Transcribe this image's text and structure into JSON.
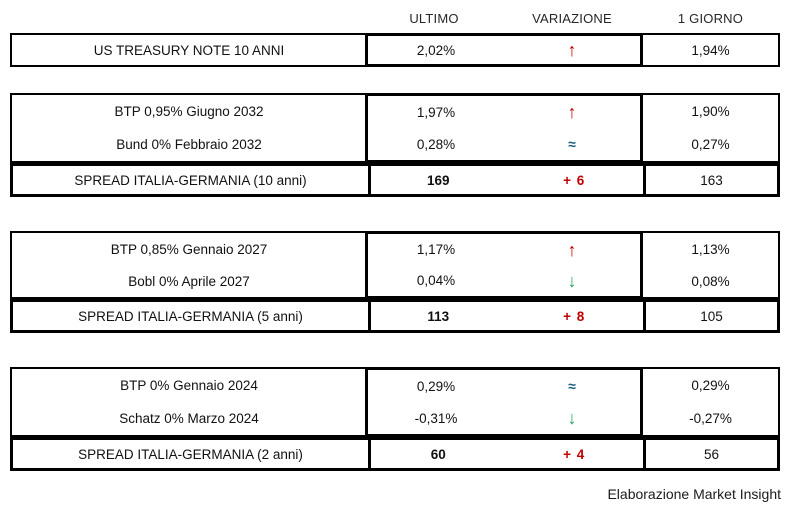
{
  "header": {
    "ultimo": "ULTIMO",
    "variazione": "VARIAZIONE",
    "giorno": "1 GIORNO"
  },
  "colors": {
    "up_red": "#c00000",
    "down_green": "#27a35f",
    "approx_blue": "#1b5e7d",
    "border_black": "#000000",
    "text": "#111111"
  },
  "sections": [
    {
      "rows": [
        {
          "label": "US TREASURY NOTE 10 ANNI",
          "ultimo": "2,02%",
          "var": {
            "glyph": "↑",
            "icon": "trend-up-icon"
          },
          "giorno": "1,94%"
        }
      ]
    },
    {
      "rows": [
        {
          "label": "BTP 0,95% Giugno 2032",
          "ultimo": "1,97%",
          "var": {
            "glyph": "↑",
            "icon": "trend-up-icon"
          },
          "giorno": "1,90%"
        },
        {
          "label": "Bund 0% Febbraio 2032",
          "ultimo": "0,28%",
          "var": {
            "glyph": "≈",
            "icon": "approx-icon"
          },
          "giorno": "0,27%"
        }
      ],
      "spread": {
        "label": "SPREAD ITALIA-GERMANIA (10 anni)",
        "ultimo": "169",
        "variazione": "+ 6",
        "giorno": "163"
      }
    },
    {
      "rows": [
        {
          "label": "BTP 0,85% Gennaio 2027",
          "ultimo": "1,17%",
          "var": {
            "glyph": "↑",
            "icon": "trend-up-icon"
          },
          "giorno": "1,13%"
        },
        {
          "label": "Bobl 0% Aprile 2027",
          "ultimo": "0,04%",
          "var": {
            "glyph": "↓",
            "icon": "trend-down-icon"
          },
          "giorno": "0,08%"
        }
      ],
      "spread": {
        "label": "SPREAD ITALIA-GERMANIA (5 anni)",
        "ultimo": "113",
        "variazione": "+ 8",
        "giorno": "105"
      }
    },
    {
      "rows": [
        {
          "label": "BTP 0% Gennaio 2024",
          "ultimo": "0,29%",
          "var": {
            "glyph": "≈",
            "icon": "approx-icon"
          },
          "giorno": "0,29%"
        },
        {
          "label": "Schatz 0% Marzo 2024",
          "ultimo": "-0,31%",
          "var": {
            "glyph": "↓",
            "icon": "trend-down-icon"
          },
          "giorno": "-0,27%"
        }
      ],
      "spread": {
        "label": "SPREAD ITALIA-GERMANIA (2 anni)",
        "ultimo": "60",
        "variazione": "+ 4",
        "giorno": "56"
      }
    }
  ],
  "footer": "Elaborazione Market Insight",
  "chart_data": {
    "type": "table",
    "columns": [
      "",
      "ULTIMO",
      "VARIAZIONE",
      "1 GIORNO"
    ],
    "rows": [
      [
        "US TREASURY NOTE 10 ANNI",
        "2,02%",
        "up",
        "1,94%"
      ],
      [
        "BTP 0,95% Giugno 2032",
        "1,97%",
        "up",
        "1,90%"
      ],
      [
        "Bund 0% Febbraio 2032",
        "0,28%",
        "unchanged",
        "0,27%"
      ],
      [
        "SPREAD ITALIA-GERMANIA (10 anni)",
        "169",
        "+ 6",
        "163"
      ],
      [
        "BTP 0,85% Gennaio 2027",
        "1,17%",
        "up",
        "1,13%"
      ],
      [
        "Bobl 0% Aprile 2027",
        "0,04%",
        "down",
        "0,08%"
      ],
      [
        "SPREAD ITALIA-GERMANIA (5 anni)",
        "113",
        "+ 8",
        "105"
      ],
      [
        "BTP 0% Gennaio 2024",
        "0,29%",
        "unchanged",
        "0,29%"
      ],
      [
        "Schatz 0% Marzo 2024",
        "-0,31%",
        "down",
        "-0,27%"
      ],
      [
        "SPREAD ITALIA-GERMANIA (2 anni)",
        "60",
        "+ 4",
        "56"
      ]
    ],
    "annotations": [
      "Elaborazione Market Insight"
    ]
  }
}
